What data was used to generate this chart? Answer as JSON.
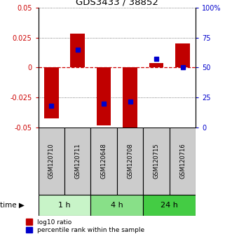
{
  "title": "GDS3433 / 38852",
  "samples": [
    "GSM120710",
    "GSM120711",
    "GSM120648",
    "GSM120708",
    "GSM120715",
    "GSM120716"
  ],
  "log10_ratio": [
    -0.042,
    0.028,
    -0.048,
    -0.054,
    0.004,
    0.02
  ],
  "percentile_rank": [
    18,
    65,
    20,
    22,
    57,
    50
  ],
  "ylim_left": [
    -0.05,
    0.05
  ],
  "ylim_right": [
    0,
    100
  ],
  "yticks_left": [
    -0.05,
    -0.025,
    0,
    0.025,
    0.05
  ],
  "yticks_right": [
    0,
    25,
    50,
    75,
    100
  ],
  "ytick_labels_left": [
    "-0.05",
    "-0.025",
    "0",
    "0.025",
    "0.05"
  ],
  "ytick_labels_right": [
    "0",
    "25",
    "50",
    "75",
    "100%"
  ],
  "groups": [
    {
      "label": "1 h",
      "indices": [
        0,
        1
      ],
      "color": "#c8f4c8"
    },
    {
      "label": "4 h",
      "indices": [
        2,
        3
      ],
      "color": "#88e088"
    },
    {
      "label": "24 h",
      "indices": [
        4,
        5
      ],
      "color": "#44cc44"
    }
  ],
  "bar_color": "#c00000",
  "percentile_color": "#0000cc",
  "bar_width": 0.55,
  "hline_color": "#cc0000",
  "grid_color": "#555555",
  "label_color_left": "#cc0000",
  "label_color_right": "#0000cc",
  "background_color": "#ffffff",
  "sample_box_color": "#cccccc",
  "time_label": "time",
  "legend1": "log10 ratio",
  "legend2": "percentile rank within the sample"
}
